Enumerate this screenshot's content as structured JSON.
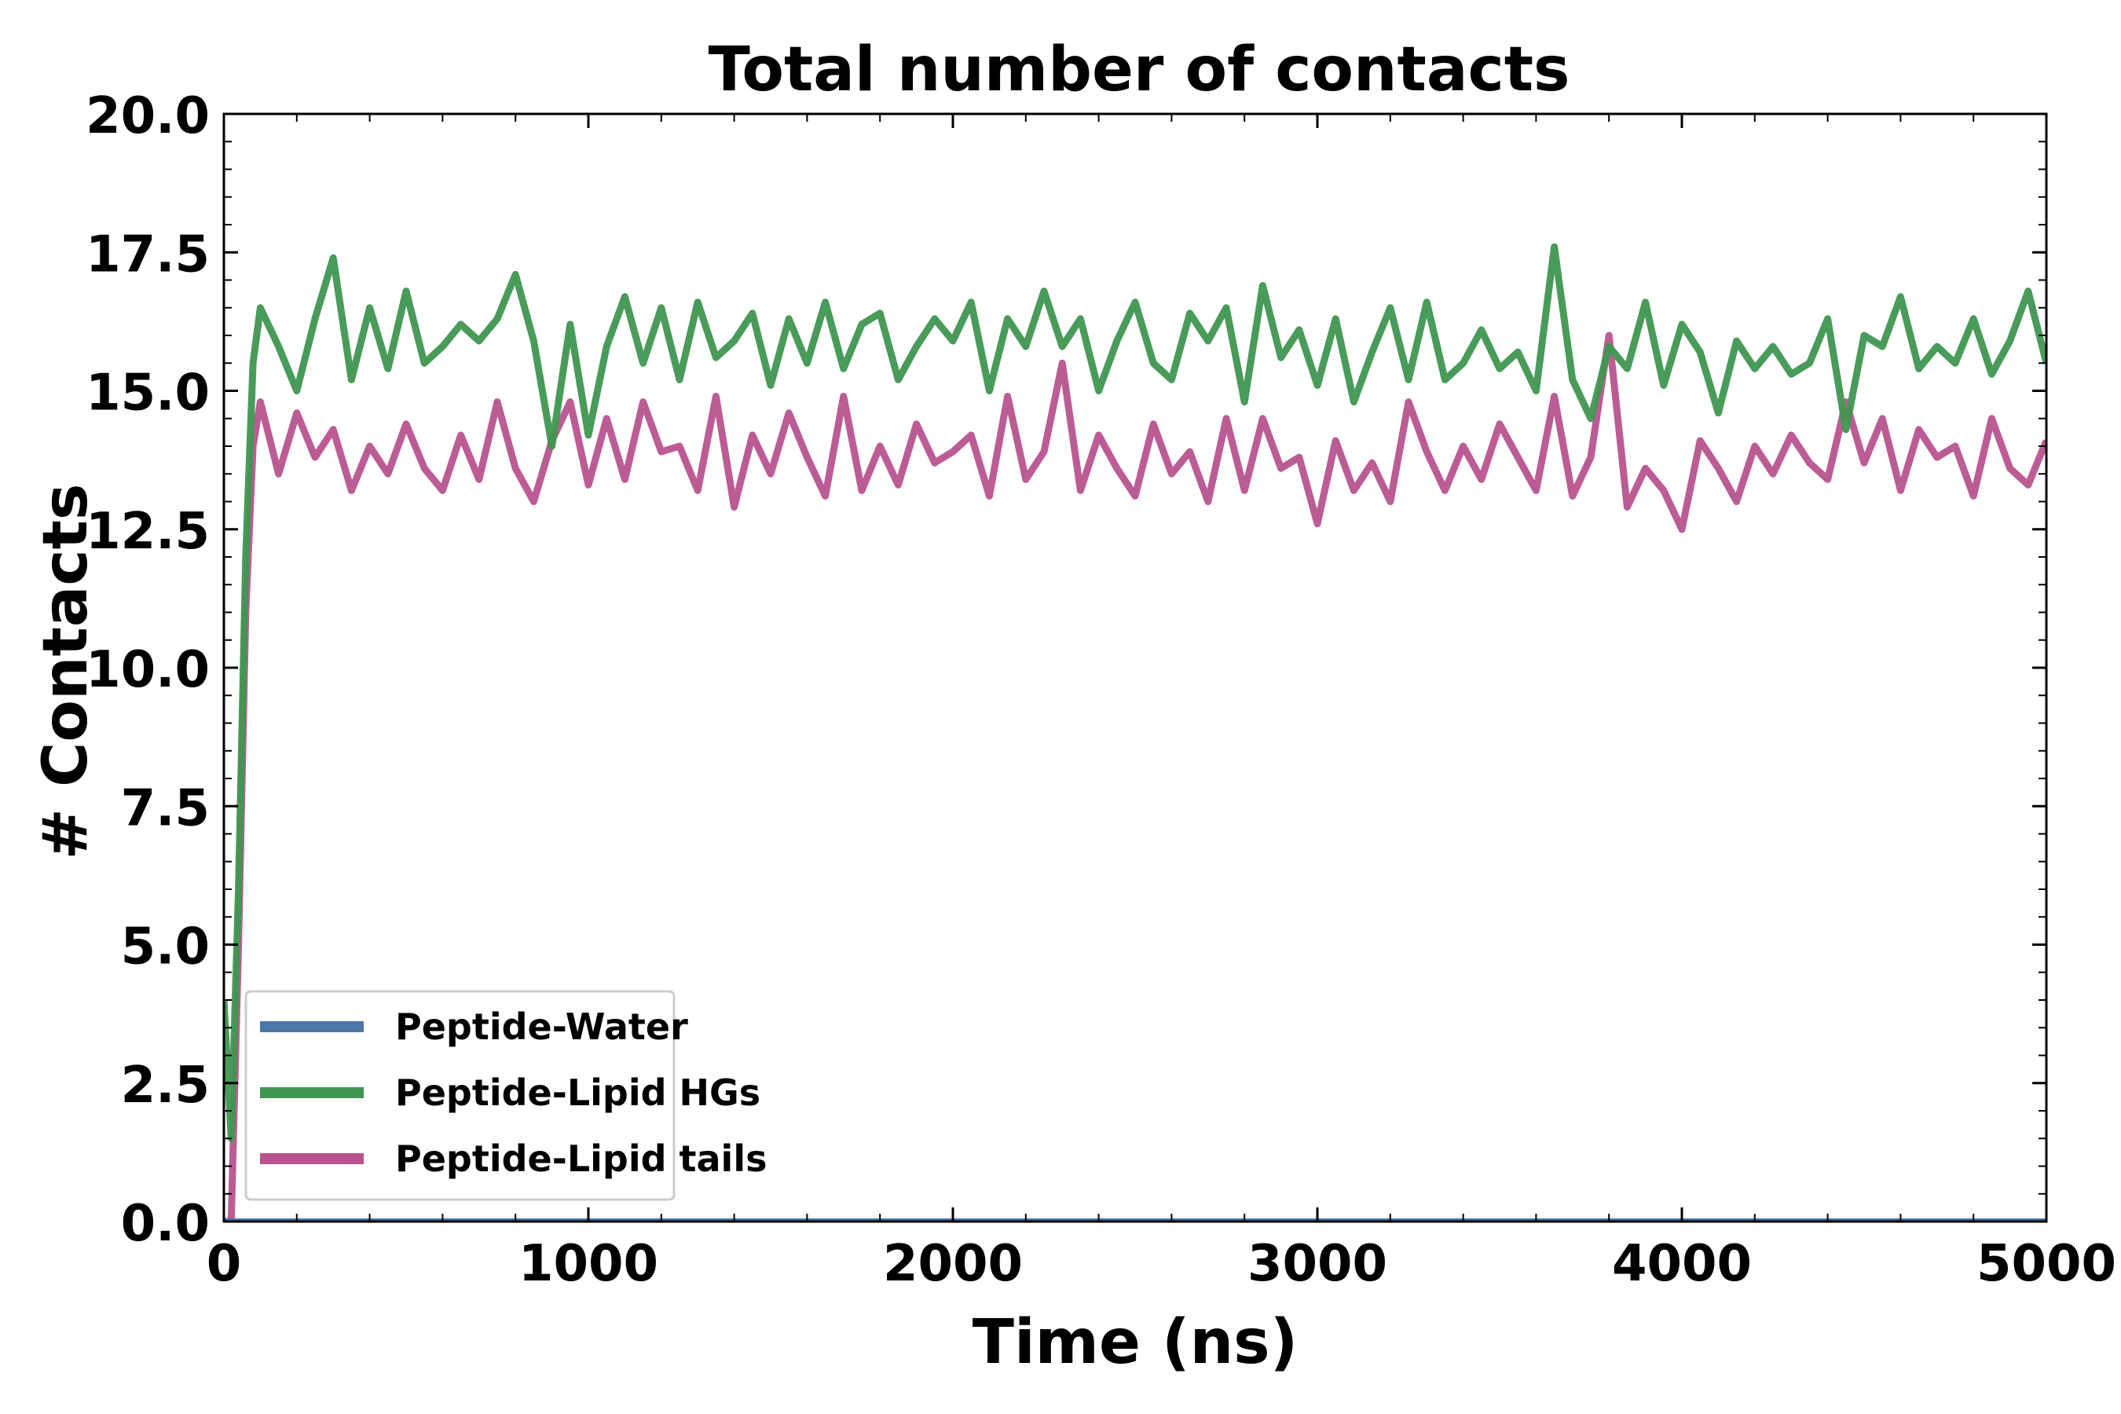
{
  "chart_data": {
    "type": "line",
    "title": "Total number of contacts",
    "xlabel": "Time (ns)",
    "ylabel": "# Contacts",
    "xlim": [
      0,
      5000
    ],
    "ylim": [
      0,
      20
    ],
    "xticks": [
      0,
      1000,
      2000,
      3000,
      4000,
      5000
    ],
    "xtick_labels": [
      "0",
      "1000",
      "2000",
      "3000",
      "4000",
      "5000"
    ],
    "yticks": [
      0,
      2.5,
      5,
      7.5,
      10,
      12.5,
      15,
      17.5,
      20
    ],
    "ytick_labels": [
      "0.0",
      "2.5",
      "5.0",
      "7.5",
      "10.0",
      "12.5",
      "15.0",
      "17.5",
      "20.0"
    ],
    "grid": false,
    "legend_position": "lower-left",
    "series": [
      {
        "name": "Peptide-Water",
        "color": "#4a76a8",
        "x": [
          0,
          5000
        ],
        "values": [
          0,
          0
        ]
      },
      {
        "name": "Peptide-Lipid HGs",
        "color": "#3f9650",
        "x": [
          0,
          20,
          40,
          60,
          80,
          100,
          150,
          200,
          250,
          300,
          350,
          400,
          450,
          500,
          550,
          600,
          650,
          700,
          750,
          800,
          850,
          900,
          950,
          1000,
          1050,
          1100,
          1150,
          1200,
          1250,
          1300,
          1350,
          1400,
          1450,
          1500,
          1550,
          1600,
          1650,
          1700,
          1750,
          1800,
          1850,
          1900,
          1950,
          2000,
          2050,
          2100,
          2150,
          2200,
          2250,
          2300,
          2350,
          2400,
          2450,
          2500,
          2550,
          2600,
          2650,
          2700,
          2750,
          2800,
          2850,
          2900,
          2950,
          3000,
          3050,
          3100,
          3150,
          3200,
          3250,
          3300,
          3350,
          3400,
          3450,
          3500,
          3550,
          3600,
          3650,
          3700,
          3750,
          3800,
          3850,
          3900,
          3950,
          4000,
          4050,
          4100,
          4150,
          4200,
          4250,
          4300,
          4350,
          4400,
          4450,
          4500,
          4550,
          4600,
          4650,
          4700,
          4750,
          4800,
          4850,
          4900,
          4950,
          5000
        ],
        "values": [
          4.0,
          1.5,
          6.0,
          12.0,
          15.5,
          16.5,
          15.8,
          15.0,
          16.3,
          17.4,
          15.2,
          16.5,
          15.4,
          16.8,
          15.5,
          15.8,
          16.2,
          15.9,
          16.3,
          17.1,
          15.9,
          14.0,
          16.2,
          14.2,
          15.8,
          16.7,
          15.5,
          16.5,
          15.2,
          16.6,
          15.6,
          15.9,
          16.4,
          15.1,
          16.3,
          15.5,
          16.6,
          15.4,
          16.2,
          16.4,
          15.2,
          15.8,
          16.3,
          15.9,
          16.6,
          15.0,
          16.3,
          15.8,
          16.8,
          15.8,
          16.3,
          15.0,
          15.9,
          16.6,
          15.5,
          15.2,
          16.4,
          15.9,
          16.5,
          14.8,
          16.9,
          15.6,
          16.1,
          15.1,
          16.3,
          14.8,
          15.7,
          16.5,
          15.2,
          16.6,
          15.2,
          15.5,
          16.1,
          15.4,
          15.7,
          15.0,
          17.6,
          15.2,
          14.5,
          15.8,
          15.4,
          16.6,
          15.1,
          16.2,
          15.7,
          14.6,
          15.9,
          15.4,
          15.8,
          15.3,
          15.5,
          16.3,
          14.3,
          16.0,
          15.8,
          16.7,
          15.4,
          15.8,
          15.5,
          16.3,
          15.3,
          15.9,
          16.8,
          15.5
        ]
      },
      {
        "name": "Peptide-Lipid tails",
        "color": "#b8538f",
        "x": [
          0,
          20,
          40,
          60,
          80,
          100,
          150,
          200,
          250,
          300,
          350,
          400,
          450,
          500,
          550,
          600,
          650,
          700,
          750,
          800,
          850,
          900,
          950,
          1000,
          1050,
          1100,
          1150,
          1200,
          1250,
          1300,
          1350,
          1400,
          1450,
          1500,
          1550,
          1600,
          1650,
          1700,
          1750,
          1800,
          1850,
          1900,
          1950,
          2000,
          2050,
          2100,
          2150,
          2200,
          2250,
          2300,
          2350,
          2400,
          2450,
          2500,
          2550,
          2600,
          2650,
          2700,
          2750,
          2800,
          2850,
          2900,
          2950,
          3000,
          3050,
          3100,
          3150,
          3200,
          3250,
          3300,
          3350,
          3400,
          3450,
          3500,
          3550,
          3600,
          3650,
          3700,
          3750,
          3800,
          3850,
          3900,
          3950,
          4000,
          4050,
          4100,
          4150,
          4200,
          4250,
          4300,
          4350,
          4400,
          4450,
          4500,
          4550,
          4600,
          4650,
          4700,
          4750,
          4800,
          4850,
          4900,
          4950,
          5000
        ],
        "values": [
          0,
          0,
          5.0,
          11.0,
          14.0,
          14.8,
          13.5,
          14.6,
          13.8,
          14.3,
          13.2,
          14.0,
          13.5,
          14.4,
          13.6,
          13.2,
          14.2,
          13.4,
          14.8,
          13.6,
          13.0,
          14.1,
          14.8,
          13.3,
          14.5,
          13.4,
          14.8,
          13.9,
          14.0,
          13.2,
          14.9,
          12.9,
          14.2,
          13.5,
          14.6,
          13.8,
          13.1,
          14.9,
          13.2,
          14.0,
          13.3,
          14.4,
          13.7,
          13.9,
          14.2,
          13.1,
          14.9,
          13.4,
          13.9,
          15.5,
          13.2,
          14.2,
          13.6,
          13.1,
          14.4,
          13.5,
          13.9,
          13.0,
          14.5,
          13.2,
          14.5,
          13.6,
          13.8,
          12.6,
          14.1,
          13.2,
          13.7,
          13.0,
          14.8,
          13.9,
          13.2,
          14.0,
          13.4,
          14.4,
          13.8,
          13.2,
          14.9,
          13.1,
          13.8,
          16.0,
          12.9,
          13.6,
          13.2,
          12.5,
          14.1,
          13.6,
          13.0,
          14.0,
          13.5,
          14.2,
          13.7,
          13.4,
          14.8,
          13.7,
          14.5,
          13.2,
          14.3,
          13.8,
          14.0,
          13.1,
          14.5,
          13.6,
          13.3,
          14.1
        ]
      }
    ]
  }
}
